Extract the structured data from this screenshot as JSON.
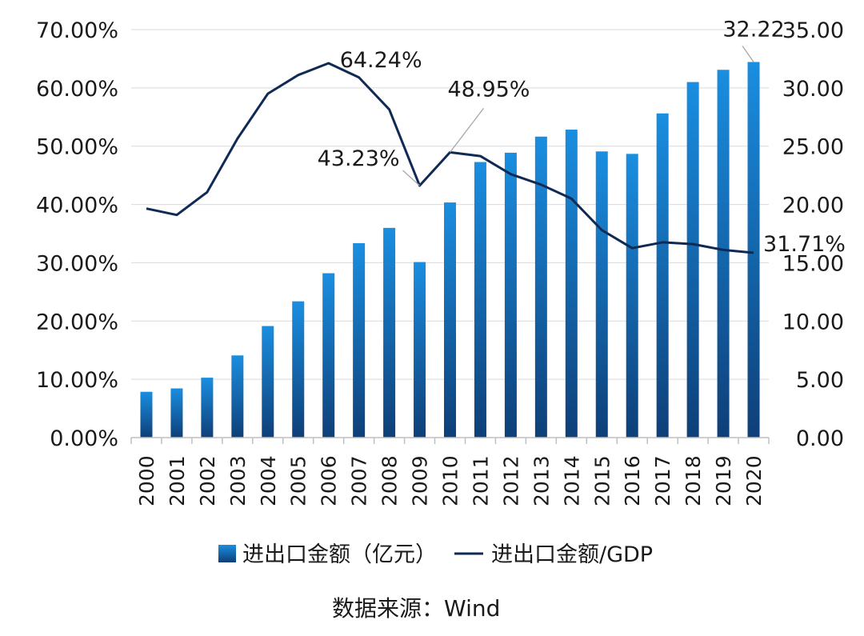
{
  "chart_data": {
    "type": "bar+line",
    "categories": [
      "2000",
      "2001",
      "2002",
      "2003",
      "2004",
      "2005",
      "2006",
      "2007",
      "2008",
      "2009",
      "2010",
      "2011",
      "2012",
      "2013",
      "2014",
      "2015",
      "2016",
      "2017",
      "2018",
      "2019",
      "2020"
    ],
    "bar_series": {
      "name": "进出口金额（亿元）",
      "axis": "right",
      "color": "#1878c8",
      "values": [
        3.93,
        4.22,
        5.14,
        7.05,
        9.57,
        11.69,
        14.1,
        16.68,
        17.99,
        15.06,
        20.17,
        23.64,
        24.44,
        25.82,
        26.42,
        24.55,
        24.34,
        27.81,
        30.5,
        31.55,
        32.22
      ]
    },
    "line_series": {
      "name": "进出口金额/GDP",
      "axis": "left",
      "color": "#0f2a54",
      "values": [
        39.3,
        38.2,
        42.1,
        51.3,
        59.0,
        62.2,
        64.24,
        61.8,
        56.3,
        43.23,
        48.95,
        48.3,
        45.2,
        43.4,
        41.0,
        35.6,
        32.5,
        33.5,
        33.2,
        32.2,
        31.71
      ]
    },
    "left_axis": {
      "min": 0,
      "max": 70,
      "ticks": [
        "0.00%",
        "10.00%",
        "20.00%",
        "30.00%",
        "40.00%",
        "50.00%",
        "60.00%",
        "70.00%"
      ]
    },
    "right_axis": {
      "min": 0,
      "max": 35,
      "ticks": [
        "0.00",
        "5.00",
        "10.00",
        "15.00",
        "20.00",
        "25.00",
        "30.00",
        "35.00"
      ]
    },
    "annotations": [
      {
        "text": "64.24%",
        "category": "2006"
      },
      {
        "text": "43.23%",
        "category": "2009"
      },
      {
        "text": "48.95%",
        "category": "2010"
      },
      {
        "text": "31.71%",
        "category": "2020"
      },
      {
        "text": "32.22",
        "category": "2020"
      }
    ],
    "grid": true,
    "legend_position": "bottom"
  },
  "source": "数据来源：Wind"
}
